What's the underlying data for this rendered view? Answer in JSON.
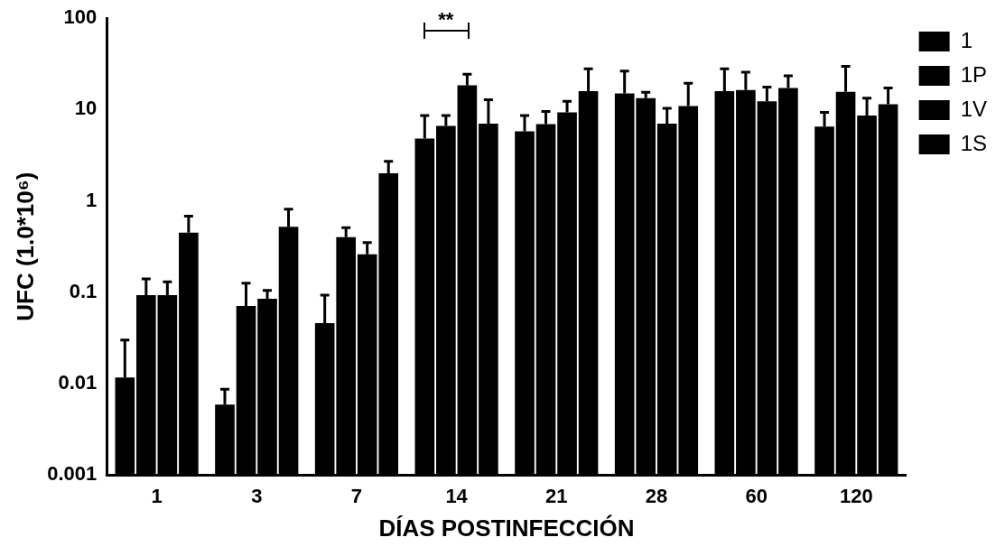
{
  "chart_data": {
    "type": "bar",
    "xlabel": "DÍAS POSTINFECCIÓN",
    "ylabel": "UFC (1.0*10⁶)",
    "categories": [
      "1",
      "3",
      "7",
      "14",
      "21",
      "28",
      "60",
      "120"
    ],
    "series": [
      {
        "name": "1",
        "color": "#000000",
        "values": [
          0.0117,
          0.0059,
          0.046,
          4.8,
          5.75,
          15.0,
          15.9,
          6.5
        ],
        "errors": [
          [
            0.0117,
            0.03
          ],
          [
            0.0059,
            0.0087
          ],
          [
            0.046,
            0.093
          ],
          [
            4.8,
            8.6
          ],
          [
            5.75,
            8.6
          ],
          [
            15.0,
            26.3
          ],
          [
            15.9,
            27.8
          ],
          [
            6.5,
            9.3
          ]
        ]
      },
      {
        "name": "1P",
        "color": "#000000",
        "values": [
          0.093,
          0.071,
          0.4,
          6.6,
          6.9,
          13.3,
          16.3,
          15.6
        ],
        "errors": [
          [
            0.093,
            0.14
          ],
          [
            0.071,
            0.126
          ],
          [
            0.4,
            0.51
          ],
          [
            6.6,
            8.6
          ],
          [
            6.9,
            9.5
          ],
          [
            13.3,
            15.4
          ],
          [
            16.3,
            25.6
          ],
          [
            15.6,
            29.6
          ]
        ]
      },
      {
        "name": "1V",
        "color": "#000000",
        "values": [
          0.093,
          0.085,
          0.26,
          18.4,
          9.3,
          7.0,
          12.3,
          8.6
        ],
        "errors": [
          [
            0.093,
            0.13
          ],
          [
            0.085,
            0.105
          ],
          [
            0.26,
            0.35
          ],
          [
            18.4,
            24.3
          ],
          [
            9.3,
            12.3
          ],
          [
            7.0,
            10.3
          ],
          [
            12.3,
            17.6
          ],
          [
            8.6,
            13.3
          ]
        ]
      },
      {
        "name": "1S",
        "color": "#000000",
        "values": [
          0.45,
          0.52,
          2.0,
          7.0,
          15.9,
          10.9,
          17.2,
          11.4
        ],
        "errors": [
          [
            0.45,
            0.68
          ],
          [
            0.52,
            0.81
          ],
          [
            2.0,
            2.7
          ],
          [
            7.0,
            12.8
          ],
          [
            15.9,
            27.8
          ],
          [
            10.9,
            19.4
          ],
          [
            17.2,
            23.3
          ],
          [
            11.4,
            17.2
          ]
        ]
      }
    ],
    "log": "y",
    "ylim": [
      0.001,
      100
    ],
    "yticks": [
      0.001,
      0.01,
      0.1,
      1,
      10,
      100
    ],
    "grid": false,
    "legend": "top right",
    "annotations": [
      "**"
    ]
  }
}
